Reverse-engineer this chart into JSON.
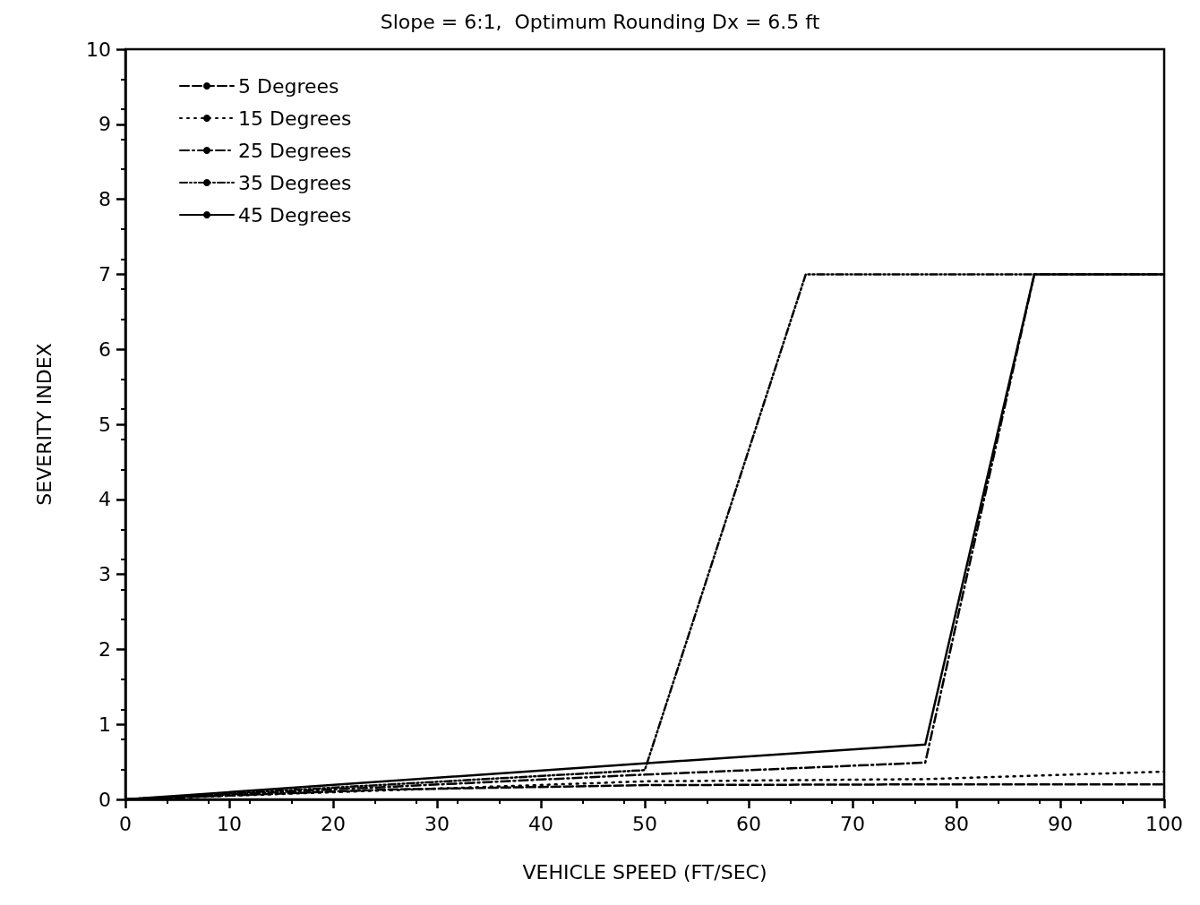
{
  "chart_data": {
    "type": "line",
    "title": "Slope = 6:1,  Optimum Rounding Dx = 6.5 ft",
    "xlabel": "VEHICLE SPEED (FT/SEC)",
    "ylabel": "SEVERITY INDEX",
    "series": [
      {
        "name": "5 Degrees",
        "color": "#000000",
        "line_style": "dashed",
        "x": [
          0,
          25,
          50,
          77,
          100
        ],
        "values": [
          0,
          0.13,
          0.19,
          0.2,
          0.2
        ]
      },
      {
        "name": "15 Degrees",
        "color": "#000000",
        "line_style": "dotted",
        "x": [
          0,
          50,
          77,
          100
        ],
        "values": [
          0,
          0.24,
          0.27,
          0.37
        ]
      },
      {
        "name": "25 Degrees",
        "color": "#000000",
        "line_style": "dashdot",
        "x": [
          0,
          50,
          77,
          87.5,
          100
        ],
        "values": [
          0,
          0.33,
          0.49,
          7,
          7
        ]
      },
      {
        "name": "35 Degrees",
        "color": "#000000",
        "line_style": "dashdotdot",
        "x": [
          0,
          50,
          65.5,
          87.5
        ],
        "values": [
          0,
          0.39,
          7,
          7
        ]
      },
      {
        "name": "45 Degrees",
        "color": "#000000",
        "line_style": "solid",
        "x": [
          0,
          50,
          77,
          87.5,
          100
        ],
        "values": [
          0,
          0.48,
          0.73,
          7,
          7
        ]
      }
    ],
    "xlim": [
      0,
      100
    ],
    "xticks": [
      0,
      10,
      20,
      30,
      40,
      50,
      60,
      70,
      80,
      90,
      100
    ],
    "ylim": [
      0,
      10
    ],
    "yticks": [
      0,
      1,
      2,
      3,
      4,
      5,
      6,
      7,
      8,
      9,
      10
    ],
    "grid": false,
    "legend": "top left",
    "marker": "none"
  }
}
